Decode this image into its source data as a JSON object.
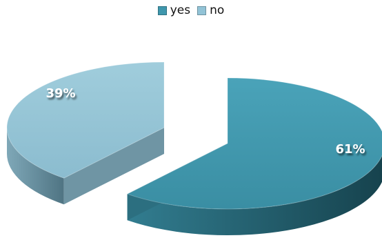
{
  "chart_data": {
    "type": "pie",
    "categories": [
      "yes",
      "no"
    ],
    "values": [
      61,
      39
    ],
    "labels": [
      "61%",
      "39%"
    ],
    "colors": [
      "#3f97ad",
      "#92c3d6"
    ],
    "legend_position": "top",
    "style": "3d-exploded"
  }
}
